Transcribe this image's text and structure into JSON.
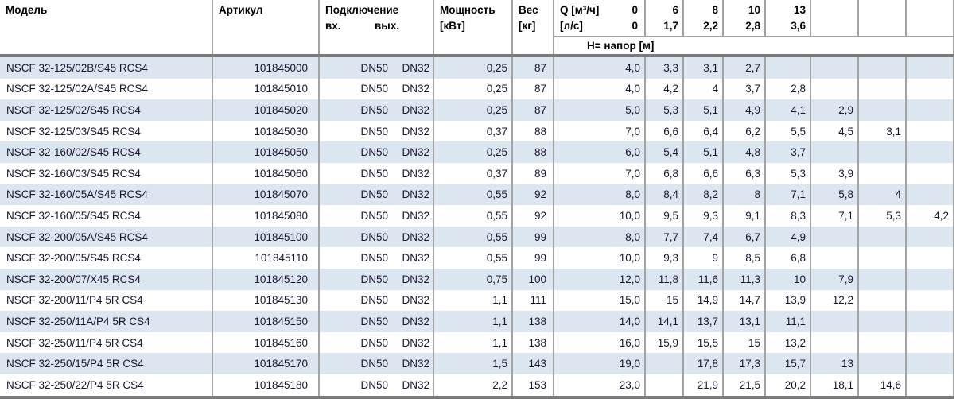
{
  "table": {
    "headers": {
      "model": "Модель",
      "article": "Артикул",
      "connection": "Подключение",
      "conn_in": "вх.",
      "conn_out": "вых.",
      "power_line1": "Мощность",
      "power_line2": "[кВт]",
      "weight_line1": "Вес",
      "weight_line2": "[кг]",
      "q_row1_label": "Q [м³/ч]",
      "q_row1_zero": "0",
      "q_row2_label": "[л/с]",
      "q_row2_zero": "0",
      "flow_cols": [
        {
          "m3h": "6",
          "ls": "1,7"
        },
        {
          "m3h": "8",
          "ls": "2,2"
        },
        {
          "m3h": "10",
          "ls": "2,8"
        },
        {
          "m3h": "13",
          "ls": "3,6"
        },
        {
          "m3h": "",
          "ls": ""
        },
        {
          "m3h": "",
          "ls": ""
        },
        {
          "m3h": "",
          "ls": ""
        }
      ],
      "head_label": "Н= напор [м]"
    },
    "rows": [
      {
        "model": "NSCF 32-125/02B/S45 RCS4",
        "article": "101845000",
        "inlet": "DN50",
        "outlet": "DN32",
        "power": "0,25",
        "weight": "87",
        "h": [
          "4,0",
          "3,3",
          "3,1",
          "2,7",
          "",
          "",
          "",
          ""
        ]
      },
      {
        "model": "NSCF 32-125/02A/S45 RCS4",
        "article": "101845010",
        "inlet": "DN50",
        "outlet": "DN32",
        "power": "0,25",
        "weight": "87",
        "h": [
          "4,0",
          "4,2",
          "4",
          "3,7",
          "2,8",
          "",
          "",
          ""
        ]
      },
      {
        "model": "NSCF 32-125/02/S45 RCS4",
        "article": "101845020",
        "inlet": "DN50",
        "outlet": "DN32",
        "power": "0,25",
        "weight": "87",
        "h": [
          "5,0",
          "5,3",
          "5,1",
          "4,9",
          "4,1",
          "2,9",
          "",
          ""
        ]
      },
      {
        "model": "NSCF 32-125/03/S45 RCS4",
        "article": "101845030",
        "inlet": "DN50",
        "outlet": "DN32",
        "power": "0,37",
        "weight": "88",
        "h": [
          "7,0",
          "6,6",
          "6,4",
          "6,2",
          "5,5",
          "4,5",
          "3,1",
          ""
        ]
      },
      {
        "model": "NSCF 32-160/02/S45 RCS4",
        "article": "101845050",
        "inlet": "DN50",
        "outlet": "DN32",
        "power": "0,25",
        "weight": "88",
        "h": [
          "6,0",
          "5,4",
          "5,1",
          "4,8",
          "3,7",
          "",
          "",
          ""
        ]
      },
      {
        "model": "NSCF 32-160/03/S45 RCS4",
        "article": "101845060",
        "inlet": "DN50",
        "outlet": "DN32",
        "power": "0,37",
        "weight": "89",
        "h": [
          "7,0",
          "6,8",
          "6,6",
          "6,3",
          "5,3",
          "3,9",
          "",
          ""
        ]
      },
      {
        "model": "NSCF 32-160/05A/S45 RCS4",
        "article": "101845070",
        "inlet": "DN50",
        "outlet": "DN32",
        "power": "0,55",
        "weight": "92",
        "h": [
          "8,0",
          "8,4",
          "8,2",
          "8",
          "7,1",
          "5,8",
          "4",
          ""
        ]
      },
      {
        "model": "NSCF 32-160/05/S45 RCS4",
        "article": "101845080",
        "inlet": "DN50",
        "outlet": "DN32",
        "power": "0,55",
        "weight": "92",
        "h": [
          "10,0",
          "9,5",
          "9,3",
          "9,1",
          "8,3",
          "7,1",
          "5,3",
          "4,2"
        ]
      },
      {
        "model": "NSCF 32-200/05A/S45 RCS4",
        "article": "101845100",
        "inlet": "DN50",
        "outlet": "DN32",
        "power": "0,55",
        "weight": "99",
        "h": [
          "8,0",
          "7,7",
          "7,4",
          "6,7",
          "4,9",
          "",
          "",
          ""
        ]
      },
      {
        "model": "NSCF 32-200/05/S45 RCS4",
        "article": "101845110",
        "inlet": "DN50",
        "outlet": "DN32",
        "power": "0,55",
        "weight": "99",
        "h": [
          "10,0",
          "9,3",
          "9",
          "8,5",
          "6,8",
          "",
          "",
          ""
        ]
      },
      {
        "model": "NSCF 32-200/07/X45 RCS4",
        "article": "101845120",
        "inlet": "DN50",
        "outlet": "DN32",
        "power": "0,75",
        "weight": "100",
        "h": [
          "12,0",
          "11,8",
          "11,6",
          "11,3",
          "10",
          "7,9",
          "",
          ""
        ]
      },
      {
        "model": "NSCF 32-200/11/P4 5R CS4",
        "article": "101845130",
        "inlet": "DN50",
        "outlet": "DN32",
        "power": "1,1",
        "weight": "111",
        "h": [
          "15,0",
          "15",
          "14,9",
          "14,7",
          "13,9",
          "12,2",
          "",
          ""
        ]
      },
      {
        "model": "NSCF 32-250/11A/P4 5R CS4",
        "article": "101845150",
        "inlet": "DN50",
        "outlet": "DN32",
        "power": "1,1",
        "weight": "138",
        "h": [
          "14,0",
          "14,1",
          "13,7",
          "13,1",
          "11,1",
          "",
          "",
          ""
        ]
      },
      {
        "model": "NSCF 32-250/11/P4 5R CS4",
        "article": "101845160",
        "inlet": "DN50",
        "outlet": "DN32",
        "power": "1,1",
        "weight": "138",
        "h": [
          "16,0",
          "15,9",
          "15,5",
          "15",
          "13,2",
          "",
          "",
          ""
        ]
      },
      {
        "model": "NSCF 32-250/15/P4 5R CS4",
        "article": "101845170",
        "inlet": "DN50",
        "outlet": "DN32",
        "power": "1,5",
        "weight": "143",
        "h": [
          "19,0",
          "",
          "17,8",
          "17,3",
          "15,7",
          "13",
          "",
          ""
        ]
      },
      {
        "model": "NSCF 32-250/22/P4 5R CS4",
        "article": "101845180",
        "inlet": "DN50",
        "outlet": "DN32",
        "power": "2,2",
        "weight": "153",
        "h": [
          "23,0",
          "",
          "21,9",
          "21,5",
          "20,2",
          "18,1",
          "14,6",
          ""
        ]
      }
    ]
  },
  "colors": {
    "row_stripe": "#dce6f1",
    "grid_line": "#a3a3a3",
    "heavy_line": "#7b7b7b",
    "text": "#16162e",
    "header_text": "#000000"
  }
}
